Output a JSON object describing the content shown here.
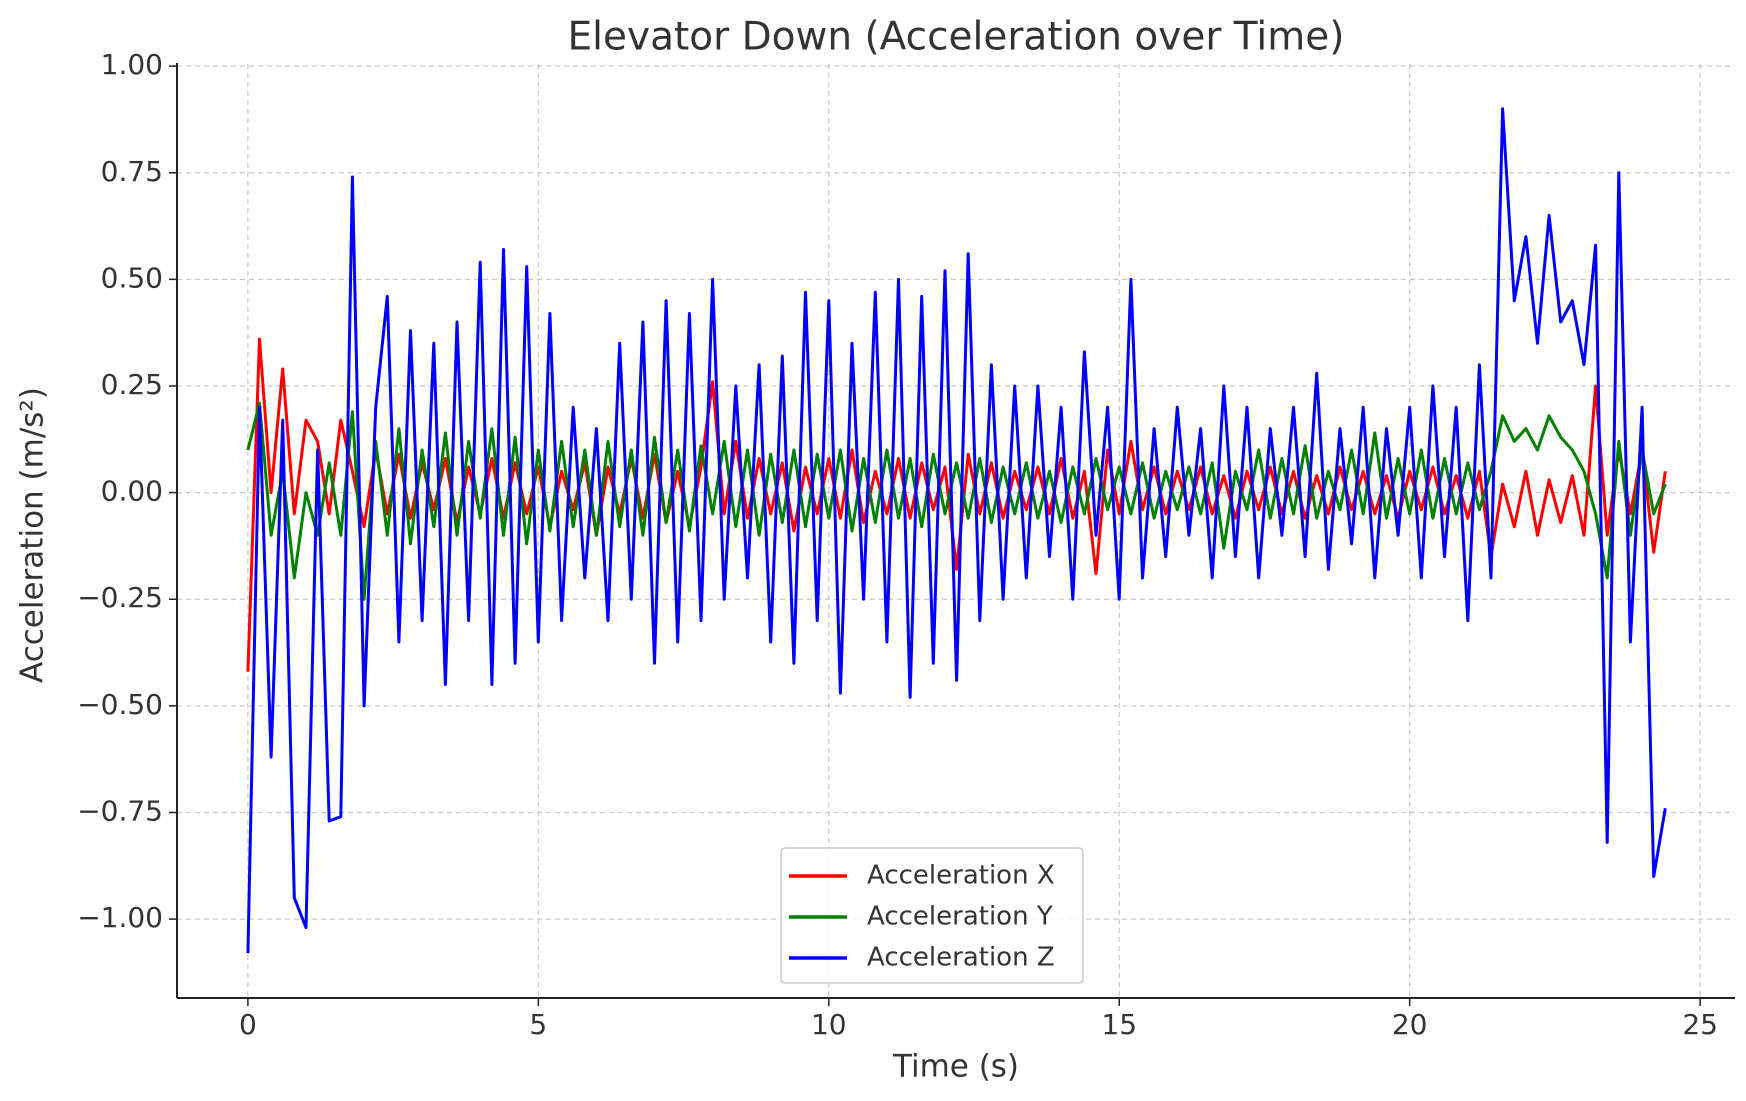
{
  "chart_data": {
    "type": "line",
    "title": "Elevator Down (Acceleration over Time)",
    "x_label": "Time (s)",
    "y_label": "Acceleration (m/s²)",
    "x": [
      0,
      0.2,
      0.4,
      0.6,
      0.8,
      1,
      1.2,
      1.4,
      1.6,
      1.8,
      2,
      2.2,
      2.4,
      2.6,
      2.8,
      3,
      3.2,
      3.4,
      3.6,
      3.8,
      4,
      4.2,
      4.4,
      4.6,
      4.8,
      5,
      5.2,
      5.4,
      5.6,
      5.8,
      6,
      6.2,
      6.4,
      6.6,
      6.8,
      7,
      7.2,
      7.4,
      7.6,
      7.8,
      8,
      8.2,
      8.4,
      8.6,
      8.8,
      9,
      9.2,
      9.4,
      9.6,
      9.8,
      10,
      10.2,
      10.4,
      10.6,
      10.8,
      11,
      11.2,
      11.4,
      11.6,
      11.8,
      12,
      12.2,
      12.4,
      12.6,
      12.8,
      13,
      13.2,
      13.4,
      13.6,
      13.8,
      14,
      14.2,
      14.4,
      14.6,
      14.8,
      15,
      15.2,
      15.4,
      15.6,
      15.8,
      16,
      16.2,
      16.4,
      16.6,
      16.8,
      17,
      17.2,
      17.4,
      17.6,
      17.8,
      18,
      18.2,
      18.4,
      18.6,
      18.8,
      19,
      19.2,
      19.4,
      19.6,
      19.8,
      20,
      20.2,
      20.4,
      20.6,
      20.8,
      21,
      21.2,
      21.4,
      21.6,
      21.8,
      22,
      22.2,
      22.4,
      22.6,
      22.8,
      23,
      23.2,
      23.4,
      23.6,
      23.8,
      24,
      24.2,
      24.4
    ],
    "series": [
      {
        "name": "Acceleration X",
        "color": "#ff0000",
        "values": [
          -0.42,
          0.36,
          0.0,
          0.29,
          -0.05,
          0.17,
          0.12,
          -0.05,
          0.17,
          0.05,
          -0.08,
          0.1,
          -0.05,
          0.09,
          -0.06,
          0.07,
          -0.04,
          0.08,
          -0.07,
          0.06,
          -0.05,
          0.08,
          -0.06,
          0.07,
          -0.05,
          0.06,
          -0.08,
          0.05,
          -0.04,
          0.07,
          -0.1,
          0.06,
          -0.05,
          0.08,
          -0.06,
          0.09,
          -0.07,
          0.05,
          -0.08,
          0.06,
          0.26,
          -0.05,
          0.12,
          -0.06,
          0.08,
          -0.05,
          0.07,
          -0.09,
          0.06,
          -0.05,
          0.08,
          -0.06,
          0.1,
          -0.07,
          0.05,
          -0.05,
          0.08,
          -0.06,
          0.07,
          -0.04,
          0.06,
          -0.18,
          0.09,
          -0.05,
          0.07,
          -0.06,
          0.05,
          -0.04,
          0.06,
          -0.05,
          0.08,
          -0.06,
          0.05,
          -0.19,
          0.1,
          -0.05,
          0.12,
          -0.04,
          0.06,
          -0.05,
          0.05,
          -0.04,
          0.06,
          -0.05,
          0.04,
          -0.06,
          0.05,
          -0.04,
          0.06,
          -0.05,
          0.05,
          -0.06,
          0.04,
          -0.05,
          0.06,
          -0.04,
          0.05,
          -0.05,
          0.04,
          -0.06,
          0.05,
          -0.04,
          0.06,
          -0.05,
          0.04,
          -0.06,
          0.05,
          -0.15,
          0.02,
          -0.08,
          0.05,
          -0.1,
          0.03,
          -0.07,
          0.04,
          -0.1,
          0.25,
          -0.1,
          0.1,
          -0.05,
          0.1,
          -0.14,
          0.05
        ]
      },
      {
        "name": "Acceleration Y",
        "color": "#008000",
        "values": [
          0.1,
          0.21,
          -0.1,
          0.05,
          -0.2,
          0.0,
          -0.1,
          0.07,
          -0.1,
          0.19,
          -0.25,
          0.12,
          -0.1,
          0.15,
          -0.12,
          0.1,
          -0.08,
          0.14,
          -0.1,
          0.12,
          -0.06,
          0.15,
          -0.1,
          0.13,
          -0.12,
          0.1,
          -0.09,
          0.12,
          -0.08,
          0.1,
          -0.1,
          0.12,
          -0.08,
          0.1,
          -0.1,
          0.13,
          -0.07,
          0.1,
          -0.09,
          0.11,
          -0.05,
          0.12,
          -0.08,
          0.1,
          -0.1,
          0.09,
          -0.07,
          0.1,
          -0.08,
          0.09,
          -0.06,
          0.1,
          -0.09,
          0.08,
          -0.07,
          0.1,
          -0.06,
          0.08,
          -0.08,
          0.09,
          -0.05,
          0.07,
          -0.06,
          0.08,
          -0.07,
          0.06,
          -0.05,
          0.07,
          -0.06,
          0.05,
          -0.07,
          0.06,
          -0.05,
          0.08,
          -0.04,
          0.06,
          -0.05,
          0.07,
          -0.06,
          0.05,
          -0.04,
          0.06,
          -0.05,
          0.07,
          -0.13,
          0.05,
          -0.04,
          0.1,
          -0.06,
          0.08,
          -0.05,
          0.11,
          -0.06,
          0.05,
          -0.04,
          0.1,
          -0.05,
          0.14,
          -0.06,
          0.08,
          -0.05,
          0.1,
          -0.06,
          0.08,
          -0.05,
          0.07,
          -0.04,
          0.05,
          0.18,
          0.12,
          0.15,
          0.1,
          0.18,
          0.13,
          0.1,
          0.05,
          -0.05,
          -0.2,
          0.12,
          -0.1,
          0.1,
          -0.05,
          0.02
        ]
      },
      {
        "name": "Acceleration Z",
        "color": "#0000ff",
        "values": [
          -1.08,
          0.2,
          -0.62,
          0.17,
          -0.95,
          -1.02,
          0.1,
          -0.77,
          -0.76,
          0.74,
          -0.5,
          0.2,
          0.46,
          -0.35,
          0.38,
          -0.3,
          0.35,
          -0.45,
          0.4,
          -0.3,
          0.54,
          -0.45,
          0.57,
          -0.4,
          0.53,
          -0.35,
          0.42,
          -0.3,
          0.2,
          -0.2,
          0.15,
          -0.3,
          0.35,
          -0.25,
          0.4,
          -0.4,
          0.45,
          -0.35,
          0.42,
          -0.3,
          0.5,
          -0.25,
          0.25,
          -0.2,
          0.3,
          -0.35,
          0.32,
          -0.4,
          0.47,
          -0.3,
          0.45,
          -0.47,
          0.35,
          -0.25,
          0.47,
          -0.35,
          0.5,
          -0.48,
          0.46,
          -0.4,
          0.52,
          -0.44,
          0.56,
          -0.3,
          0.3,
          -0.25,
          0.25,
          -0.2,
          0.25,
          -0.15,
          0.2,
          -0.25,
          0.33,
          -0.1,
          0.2,
          -0.25,
          0.5,
          -0.2,
          0.15,
          -0.15,
          0.2,
          -0.1,
          0.15,
          -0.2,
          0.25,
          -0.15,
          0.2,
          -0.2,
          0.15,
          -0.1,
          0.2,
          -0.15,
          0.28,
          -0.18,
          0.15,
          -0.12,
          0.2,
          -0.2,
          0.15,
          -0.1,
          0.2,
          -0.2,
          0.25,
          -0.15,
          0.2,
          -0.3,
          0.3,
          -0.2,
          0.9,
          0.45,
          0.6,
          0.35,
          0.65,
          0.4,
          0.45,
          0.3,
          0.58,
          -0.82,
          0.75,
          -0.35,
          0.2,
          -0.9,
          -0.74
        ]
      }
    ],
    "xlim": [
      -1.22,
      25.6
    ],
    "ylim": [
      -1.185,
      1.005
    ],
    "xticks": [
      0,
      5,
      10,
      15,
      20,
      25
    ],
    "yticks": [
      {
        "value": -1,
        "label": "−1.00"
      },
      {
        "value": -0.75,
        "label": "−0.75"
      },
      {
        "value": -0.5,
        "label": "−0.50"
      },
      {
        "value": -0.25,
        "label": "−0.25"
      },
      {
        "value": 0,
        "label": "0.00"
      },
      {
        "value": 0.25,
        "label": "0.25"
      },
      {
        "value": 0.5,
        "label": "0.50"
      },
      {
        "value": 0.75,
        "label": "0.75"
      },
      {
        "value": 1,
        "label": "1.00"
      }
    ],
    "grid": true,
    "legend": "lower center"
  }
}
